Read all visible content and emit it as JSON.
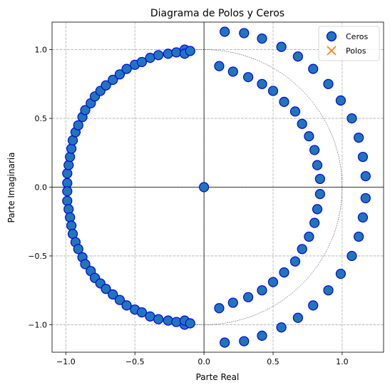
{
  "chart_data": {
    "type": "scatter",
    "title": "Diagrama de Polos y Ceros",
    "xlabel": "Parte Real",
    "ylabel": "Parte Imaginaria",
    "xlim": [
      -1.1,
      1.3
    ],
    "ylim": [
      -1.2,
      1.2
    ],
    "xticks": [
      -1.0,
      -0.5,
      0.0,
      0.5,
      1.0
    ],
    "xtick_labels": [
      "−1.0",
      "−0.5",
      "0.0",
      "0.5",
      "1.0"
    ],
    "yticks": [
      -1.0,
      -0.5,
      0.0,
      0.5,
      1.0
    ],
    "ytick_labels": [
      "−1.0",
      "−0.5",
      "0.0",
      "0.5",
      "1.0"
    ],
    "grid": true,
    "unit_circle": true,
    "legend_position": "top-right",
    "legend": [
      {
        "label": "Ceros",
        "marker": "circle",
        "fill": "#1f77b4",
        "edge": "#0000ff"
      },
      {
        "label": "Polos",
        "marker": "x",
        "color": "#ff7f0e"
      }
    ],
    "series": [
      {
        "name": "Ceros",
        "marker": "circle",
        "fill": "#1f77b4",
        "edge": "#0000ff",
        "points": [
          [
            0.0,
            0.0
          ],
          [
            -0.99,
            0.03
          ],
          [
            -0.99,
            0.1
          ],
          [
            -0.98,
            0.16
          ],
          [
            -0.97,
            0.22
          ],
          [
            -0.96,
            0.28
          ],
          [
            -0.95,
            0.34
          ],
          [
            -0.93,
            0.4
          ],
          [
            -0.91,
            0.45
          ],
          [
            -0.88,
            0.51
          ],
          [
            -0.86,
            0.56
          ],
          [
            -0.82,
            0.61
          ],
          [
            -0.79,
            0.66
          ],
          [
            -0.75,
            0.7
          ],
          [
            -0.71,
            0.74
          ],
          [
            -0.66,
            0.78
          ],
          [
            -0.61,
            0.82
          ],
          [
            -0.56,
            0.86
          ],
          [
            -0.5,
            0.89
          ],
          [
            -0.45,
            0.91
          ],
          [
            -0.39,
            0.94
          ],
          [
            -0.33,
            0.96
          ],
          [
            -0.26,
            0.97
          ],
          [
            -0.2,
            0.98
          ],
          [
            -0.14,
            1.0
          ],
          [
            -0.14,
            0.97
          ],
          [
            -0.1,
            0.99
          ],
          [
            -0.99,
            -0.03
          ],
          [
            -0.99,
            -0.1
          ],
          [
            -0.98,
            -0.16
          ],
          [
            -0.97,
            -0.22
          ],
          [
            -0.96,
            -0.28
          ],
          [
            -0.95,
            -0.34
          ],
          [
            -0.93,
            -0.4
          ],
          [
            -0.91,
            -0.45
          ],
          [
            -0.88,
            -0.51
          ],
          [
            -0.86,
            -0.56
          ],
          [
            -0.82,
            -0.61
          ],
          [
            -0.79,
            -0.66
          ],
          [
            -0.75,
            -0.7
          ],
          [
            -0.71,
            -0.74
          ],
          [
            -0.66,
            -0.78
          ],
          [
            -0.61,
            -0.82
          ],
          [
            -0.56,
            -0.86
          ],
          [
            -0.5,
            -0.89
          ],
          [
            -0.45,
            -0.91
          ],
          [
            -0.39,
            -0.94
          ],
          [
            -0.33,
            -0.96
          ],
          [
            -0.26,
            -0.97
          ],
          [
            -0.2,
            -0.98
          ],
          [
            -0.14,
            -1.0
          ],
          [
            -0.14,
            -0.97
          ],
          [
            -0.1,
            -0.99
          ],
          [
            0.15,
            1.13
          ],
          [
            0.29,
            1.12
          ],
          [
            0.42,
            1.08
          ],
          [
            0.56,
            1.02
          ],
          [
            0.68,
            0.95
          ],
          [
            0.79,
            0.86
          ],
          [
            0.9,
            0.75
          ],
          [
            0.99,
            0.63
          ],
          [
            1.07,
            0.5
          ],
          [
            1.12,
            0.36
          ],
          [
            1.15,
            0.22
          ],
          [
            1.17,
            0.08
          ],
          [
            0.15,
            -1.13
          ],
          [
            0.29,
            -1.12
          ],
          [
            0.42,
            -1.08
          ],
          [
            0.56,
            -1.02
          ],
          [
            0.68,
            -0.95
          ],
          [
            0.79,
            -0.86
          ],
          [
            0.9,
            -0.75
          ],
          [
            0.99,
            -0.63
          ],
          [
            1.07,
            -0.5
          ],
          [
            1.12,
            -0.36
          ],
          [
            1.15,
            -0.22
          ],
          [
            1.17,
            -0.08
          ],
          [
            0.11,
            0.88
          ],
          [
            0.21,
            0.84
          ],
          [
            0.32,
            0.8
          ],
          [
            0.42,
            0.75
          ],
          [
            0.5,
            0.7
          ],
          [
            0.58,
            0.62
          ],
          [
            0.66,
            0.55
          ],
          [
            0.71,
            0.46
          ],
          [
            0.76,
            0.37
          ],
          [
            0.8,
            0.27
          ],
          [
            0.82,
            0.16
          ],
          [
            0.84,
            0.06
          ],
          [
            0.11,
            -0.88
          ],
          [
            0.21,
            -0.84
          ],
          [
            0.32,
            -0.8
          ],
          [
            0.42,
            -0.75
          ],
          [
            0.5,
            -0.69
          ],
          [
            0.58,
            -0.62
          ],
          [
            0.66,
            -0.54
          ],
          [
            0.71,
            -0.45
          ],
          [
            0.76,
            -0.36
          ],
          [
            0.8,
            -0.26
          ],
          [
            0.82,
            -0.16
          ],
          [
            0.84,
            -0.05
          ]
        ]
      },
      {
        "name": "Polos",
        "marker": "x",
        "color": "#ff7f0e",
        "points": []
      }
    ]
  }
}
